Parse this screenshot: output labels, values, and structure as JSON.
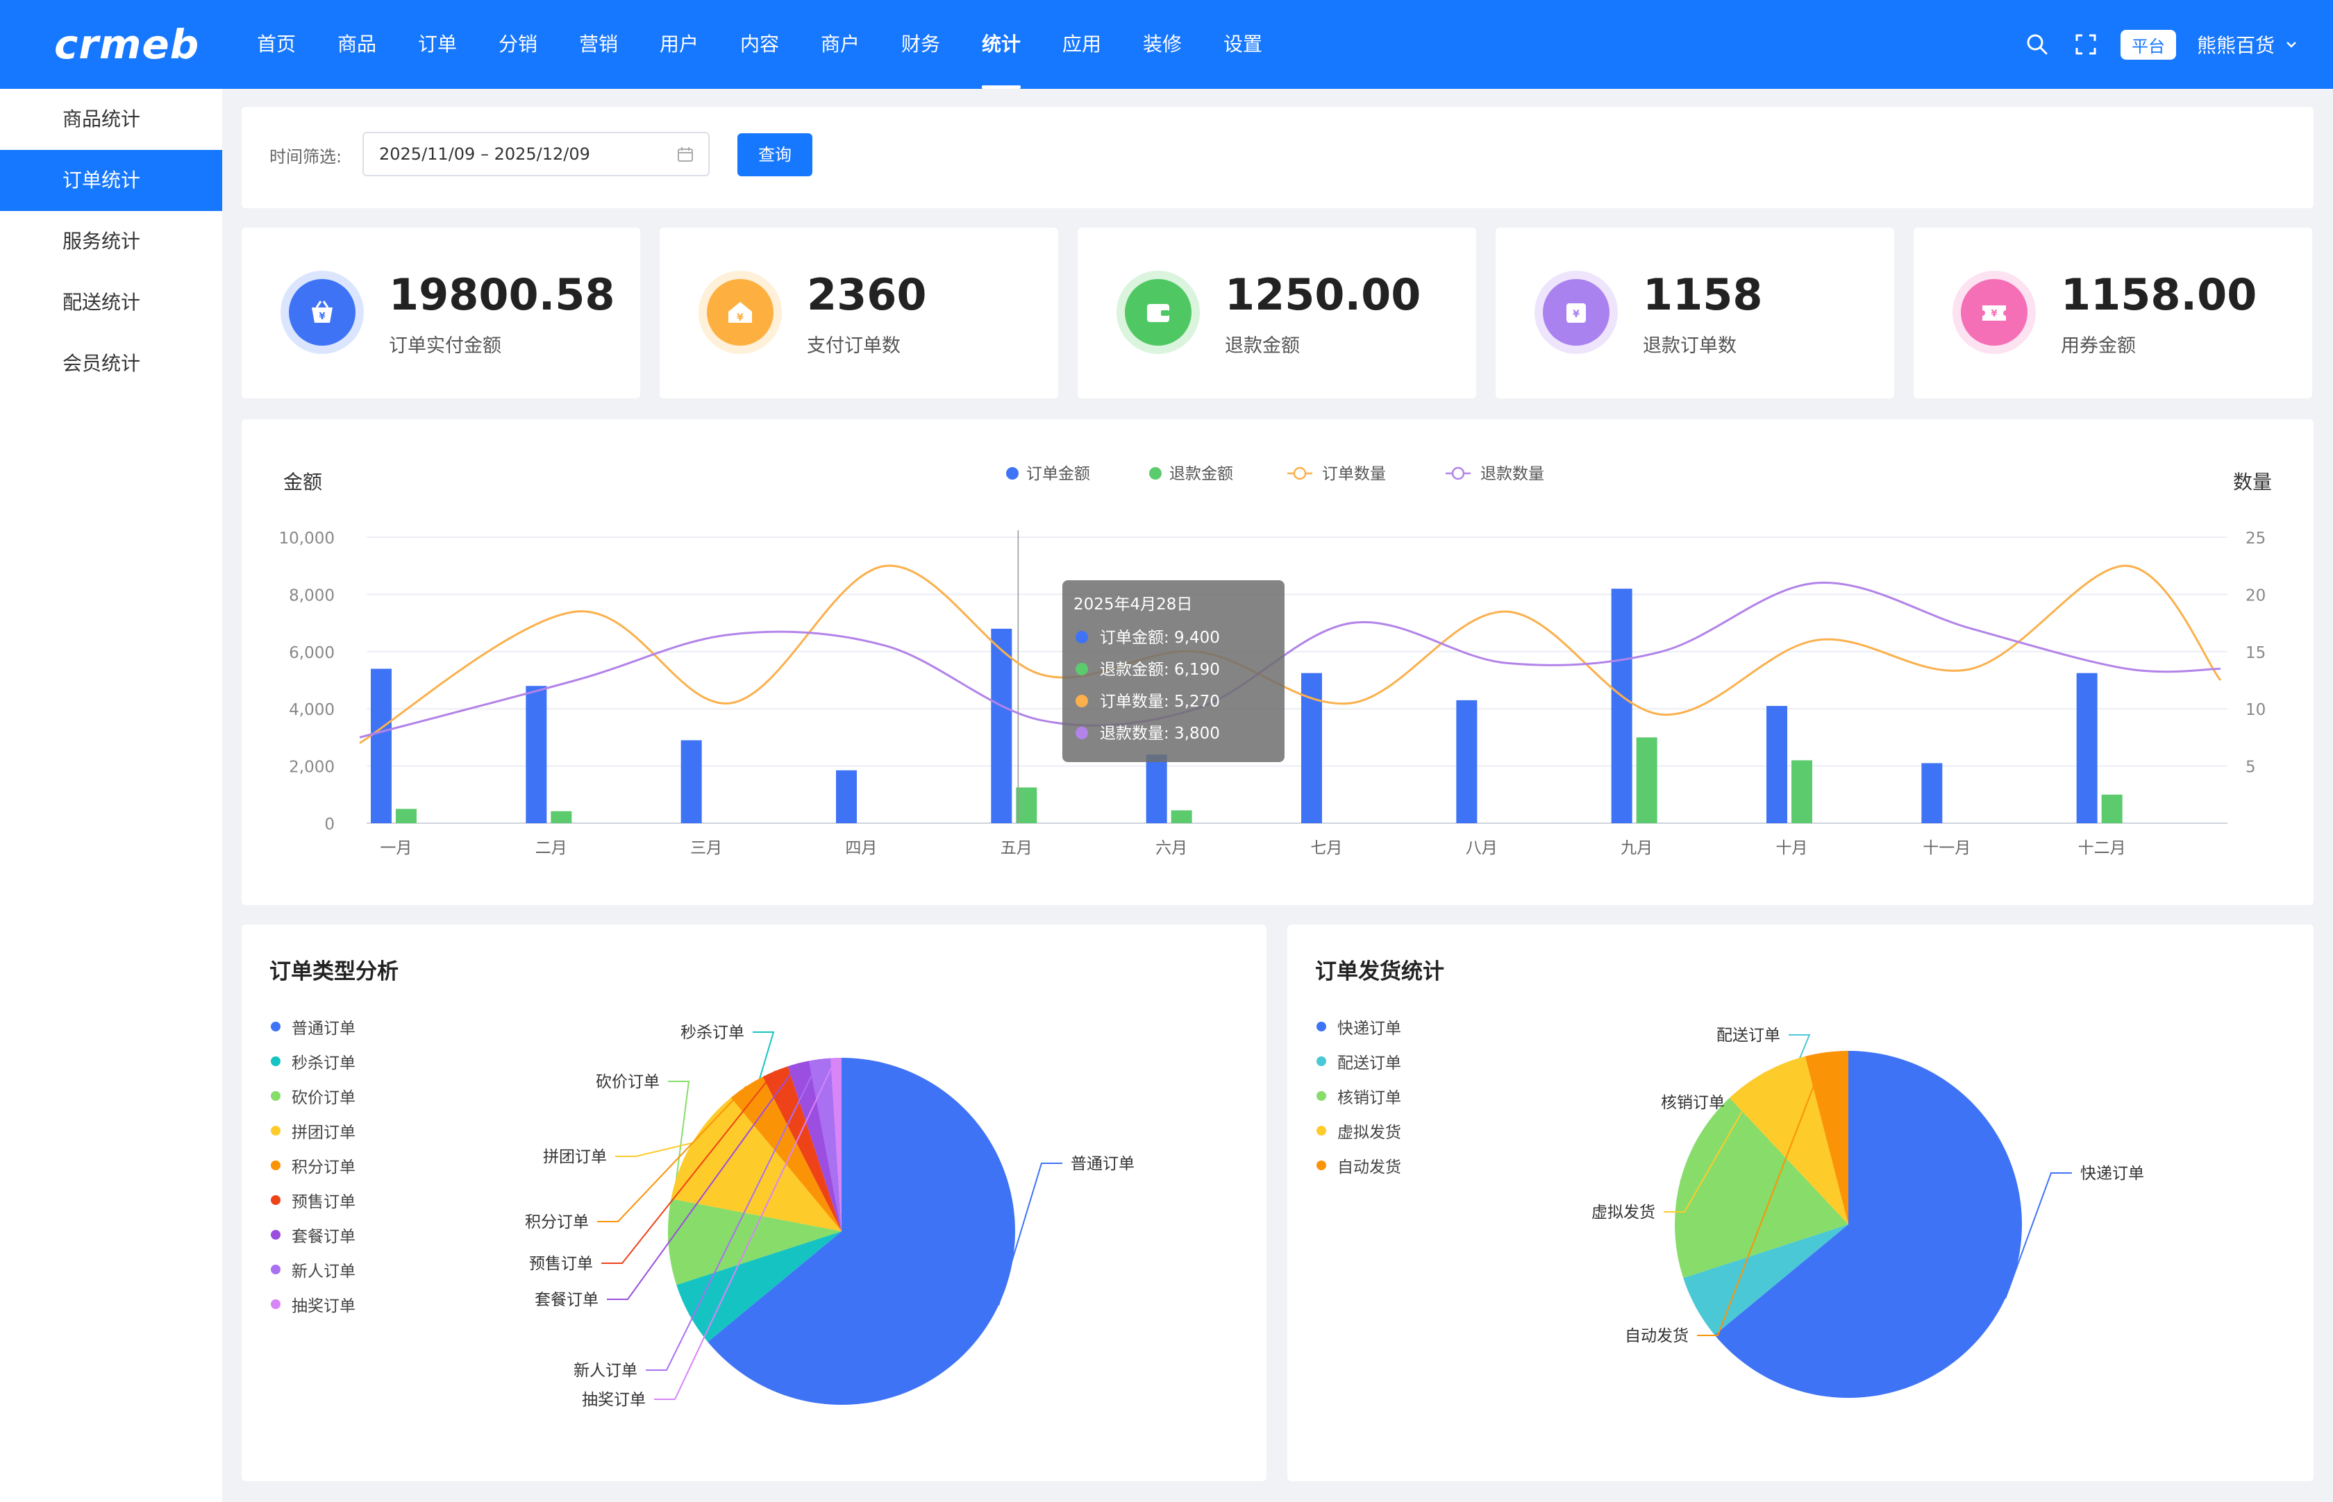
{
  "header": {
    "logo": "crmeb",
    "nav": [
      "首页",
      "商品",
      "订单",
      "分销",
      "营销",
      "用户",
      "内容",
      "商户",
      "财务",
      "统计",
      "应用",
      "装修",
      "设置"
    ],
    "active_nav": 9,
    "platform_badge": "平台",
    "store_name": "熊熊百货"
  },
  "sidebar": {
    "items": [
      "商品统计",
      "订单统计",
      "服务统计",
      "配送统计",
      "会员统计"
    ],
    "active": 1
  },
  "filter": {
    "label": "时间筛选:",
    "date_range": "2025/11/09 – 2025/12/09",
    "query_button": "查询"
  },
  "stats": [
    {
      "value": "19800.58",
      "label": "订单实付金额",
      "color": "#3f73f6",
      "ring": "#dbe6fe",
      "icon": "shopping-basket-icon",
      "glyph": "¥"
    },
    {
      "value": "2360",
      "label": "支付订单数",
      "color": "#fdb040",
      "ring": "#fff0d9",
      "icon": "house-icon",
      "glyph": "¥"
    },
    {
      "value": "1250.00",
      "label": "退款金额",
      "color": "#4fc863",
      "ring": "#daf4de",
      "icon": "wallet-icon",
      "glyph": "▣"
    },
    {
      "value": "1158",
      "label": "退款订单数",
      "color": "#a982f0",
      "ring": "#eee5fd",
      "icon": "refund-bag-icon",
      "glyph": "¥"
    },
    {
      "value": "1158.00",
      "label": "用券金额",
      "color": "#f56fb6",
      "ring": "#fde2f1",
      "icon": "coupon-icon",
      "glyph": "¥"
    }
  ],
  "chart_data": {
    "type": "bar",
    "title": "",
    "ylabel": "金额",
    "y2label": "数量",
    "ylim": [
      0,
      10000
    ],
    "y2lim": [
      0,
      25
    ],
    "yticks": [
      "0",
      "2,000",
      "4,000",
      "6,000",
      "8,000",
      "10,000"
    ],
    "y2ticks": [
      "5",
      "10",
      "15",
      "20",
      "25"
    ],
    "categories": [
      "一月",
      "二月",
      "三月",
      "四月",
      "五月",
      "六月",
      "七月",
      "八月",
      "九月",
      "十月",
      "十一月",
      "十二月"
    ],
    "legend": [
      "订单金额",
      "退款金额",
      "订单数量",
      "退款数量"
    ],
    "legend_position": "top-center",
    "series": [
      {
        "name": "订单金额",
        "kind": "bar",
        "axis": "left",
        "color": "#3f73f6",
        "values": [
          5400,
          4800,
          2900,
          1850,
          6800,
          2400,
          5250,
          4300,
          8200,
          4100,
          2100,
          5250
        ]
      },
      {
        "name": "退款金额",
        "kind": "bar",
        "axis": "left",
        "color": "#5ccb6e",
        "values": [
          500,
          420,
          0,
          0,
          1250,
          450,
          0,
          0,
          3000,
          2200,
          0,
          1000
        ]
      },
      {
        "name": "订单数量",
        "kind": "line",
        "axis": "right",
        "color": "#fbb04c",
        "values": [
          7,
          18.5,
          10.5,
          22.5,
          13,
          15,
          10.5,
          18.5,
          9.5,
          16,
          13.5,
          22.5
        ],
        "end": 12.5
      },
      {
        "name": "退款数量",
        "kind": "line",
        "axis": "right",
        "color": "#b283e8",
        "values": [
          7.5,
          12.5,
          16.5,
          15.5,
          9,
          10,
          17.5,
          14,
          15,
          21,
          17,
          13.5
        ],
        "end": 13.5
      }
    ],
    "tooltip": {
      "title": "2025年4月28日",
      "rows": [
        {
          "label": "订单金额:",
          "value": "9,400",
          "color": "#3f73f6"
        },
        {
          "label": "退款金额:",
          "value": "6,190",
          "color": "#5ccb6e"
        },
        {
          "label": "订单数量:",
          "value": "5,270",
          "color": "#fbb04c"
        },
        {
          "label": "退款数量:",
          "value": "3,800",
          "color": "#b283e8"
        }
      ]
    },
    "grid": true
  },
  "order_type": {
    "title": "订单类型分析",
    "type": "pie",
    "labels": [
      "普通订单",
      "秒杀订单",
      "砍价订单",
      "拼团订单",
      "积分订单",
      "预售订单",
      "套餐订单",
      "新人订单",
      "抽奖订单"
    ],
    "values": [
      64,
      6,
      8,
      11,
      3.5,
      2.5,
      2,
      2,
      1
    ],
    "colors": [
      "#3f73f6",
      "#16c3c3",
      "#88dc6a",
      "#fdcb2a",
      "#fb9307",
      "#ee4318",
      "#9b4ee0",
      "#a970f2",
      "#d885f7"
    ]
  },
  "shipping": {
    "title": "订单发货统计",
    "type": "pie",
    "labels": [
      "快递订单",
      "配送订单",
      "核销订单",
      "虚拟发货",
      "自动发货"
    ],
    "values": [
      64,
      6,
      18,
      8,
      4
    ],
    "colors": [
      "#3f73f6",
      "#4bc8d6",
      "#88dc6a",
      "#fdcb2a",
      "#fb9307"
    ]
  }
}
